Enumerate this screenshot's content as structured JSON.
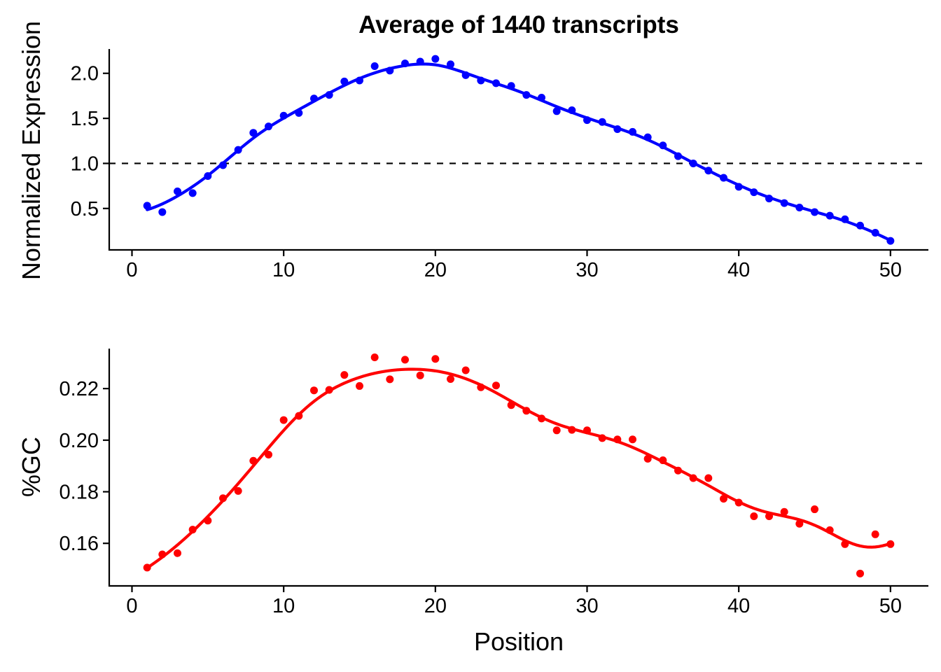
{
  "title": "Average of 1440 transcripts",
  "colors": {
    "expression": "#0000ff",
    "gc": "#ff0000",
    "axis": "#000000"
  },
  "chart_data": [
    {
      "type": "scatter",
      "title": "Average of 1440 transcripts",
      "xlabel": "",
      "ylabel": "Normalized Expression",
      "xlim": [
        -1.5,
        52.5
      ],
      "ylim": [
        0.04,
        2.27
      ],
      "xticks": [
        0,
        10,
        20,
        30,
        40,
        50
      ],
      "xtick_labels": [
        "0",
        "10",
        "20",
        "30",
        "40",
        "50"
      ],
      "yticks": [
        0.5,
        1.0,
        1.5,
        2.0
      ],
      "ytick_labels": [
        "0.5",
        "1.0",
        "1.5",
        "2.0"
      ],
      "reference_line": {
        "y": 1.0,
        "style": "dashed"
      },
      "grid": false,
      "smooth_fit": "loess",
      "x": [
        1,
        2,
        3,
        4,
        5,
        6,
        7,
        8,
        9,
        10,
        11,
        12,
        13,
        14,
        15,
        16,
        17,
        18,
        19,
        20,
        21,
        22,
        23,
        24,
        25,
        26,
        27,
        28,
        29,
        30,
        31,
        32,
        33,
        34,
        35,
        36,
        37,
        38,
        39,
        40,
        41,
        42,
        43,
        44,
        45,
        46,
        47,
        48,
        49,
        50
      ],
      "series": [
        {
          "color": "#0000ff",
          "values": [
            0.53,
            0.46,
            0.69,
            0.67,
            0.86,
            0.98,
            1.15,
            1.34,
            1.41,
            1.53,
            1.56,
            1.72,
            1.76,
            1.91,
            1.92,
            2.08,
            2.03,
            2.11,
            2.13,
            2.16,
            2.1,
            1.98,
            1.92,
            1.89,
            1.86,
            1.76,
            1.73,
            1.58,
            1.59,
            1.48,
            1.46,
            1.38,
            1.35,
            1.29,
            1.2,
            1.08,
            1.0,
            0.92,
            0.84,
            0.74,
            0.68,
            0.61,
            0.56,
            0.51,
            0.46,
            0.42,
            0.38,
            0.31,
            0.23,
            0.14
          ]
        }
      ]
    },
    {
      "type": "scatter",
      "title": "",
      "xlabel": "Position",
      "ylabel": "%GC",
      "xlim": [
        -1.5,
        52.5
      ],
      "ylim": [
        0.1435,
        0.2355
      ],
      "xticks": [
        0,
        10,
        20,
        30,
        40,
        50
      ],
      "xtick_labels": [
        "0",
        "10",
        "20",
        "30",
        "40",
        "50"
      ],
      "yticks": [
        0.16,
        0.18,
        0.2,
        0.22
      ],
      "ytick_labels": [
        "0.16",
        "0.18",
        "0.20",
        "0.22"
      ],
      "grid": false,
      "smooth_fit": "loess",
      "x": [
        1,
        2,
        3,
        4,
        5,
        6,
        7,
        8,
        9,
        10,
        11,
        12,
        13,
        14,
        15,
        16,
        17,
        18,
        19,
        20,
        21,
        22,
        23,
        24,
        25,
        26,
        27,
        28,
        29,
        30,
        31,
        32,
        33,
        34,
        35,
        36,
        37,
        38,
        39,
        40,
        41,
        42,
        43,
        44,
        45,
        46,
        47,
        48,
        49,
        50
      ],
      "series": [
        {
          "color": "#ff0000",
          "values": [
            0.1506,
            0.1557,
            0.1562,
            0.1653,
            0.1688,
            0.1775,
            0.1803,
            0.192,
            0.1944,
            0.2078,
            0.2094,
            0.2193,
            0.2195,
            0.2253,
            0.221,
            0.2321,
            0.2236,
            0.2312,
            0.2251,
            0.2315,
            0.2237,
            0.2271,
            0.2205,
            0.2212,
            0.2136,
            0.2114,
            0.2084,
            0.2038,
            0.204,
            0.2038,
            0.2008,
            0.2003,
            0.2003,
            0.1928,
            0.1922,
            0.1882,
            0.1853,
            0.1853,
            0.1773,
            0.1758,
            0.1705,
            0.1705,
            0.1722,
            0.1676,
            0.1732,
            0.1651,
            0.1597,
            0.1483,
            0.1635,
            0.1597
          ]
        }
      ]
    }
  ]
}
